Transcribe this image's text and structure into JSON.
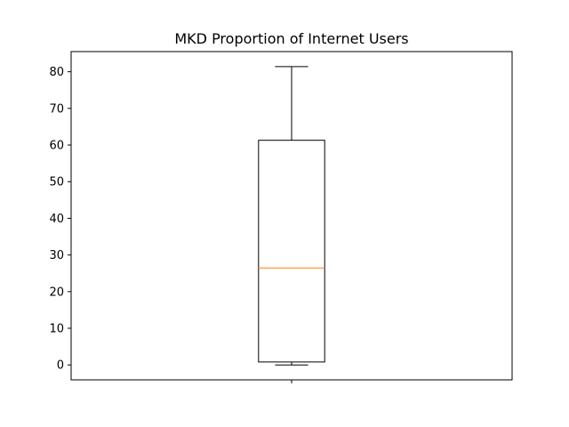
{
  "chart_data": {
    "type": "box",
    "title": "MKD Proportion of Internet Users",
    "xlabel": "",
    "ylabel": "",
    "ylim": [
      -4.08,
      85.5
    ],
    "yticks": [
      0,
      10,
      20,
      30,
      40,
      50,
      60,
      70,
      80
    ],
    "xticks": [
      1
    ],
    "xtick_labels": [
      ""
    ],
    "grid": false,
    "boxes": [
      {
        "position": 1,
        "whisker_low": 0.0,
        "q1": 0.8,
        "median": 26.45,
        "q3": 61.3,
        "whisker_high": 81.4
      }
    ],
    "colors": {
      "box": "#000000",
      "median": "#ff7f0e",
      "axes": "#000000"
    }
  }
}
